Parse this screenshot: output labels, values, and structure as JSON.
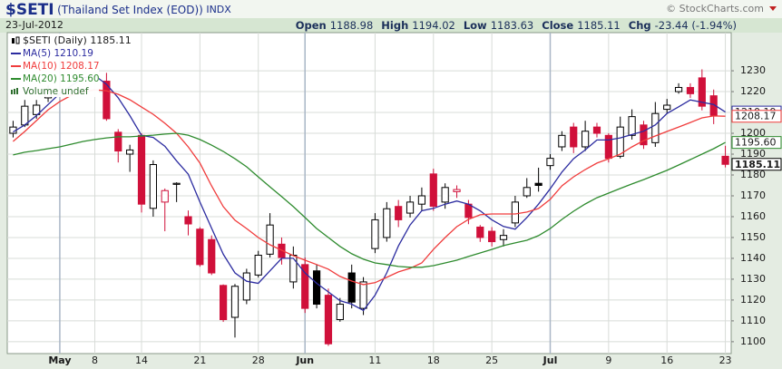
{
  "chart_data": {
    "type": "candlestick",
    "title": "$SETI",
    "subtitle": "(Thailand Set Index (EOD))",
    "exchange": "INDX",
    "source": "© StockCharts.com",
    "date": "23-Jul-2012",
    "quote": [
      {
        "label": "Open",
        "value": 1188.98
      },
      {
        "label": "High",
        "value": 1194.02
      },
      {
        "label": "Low",
        "value": 1183.63
      },
      {
        "label": "Close",
        "value": 1185.11
      },
      {
        "label": "Chg",
        "value_label": "-23.44 (-1.94%)"
      }
    ],
    "legend": {
      "price_label": "$SETI (Daily)",
      "volume_label": "Volume undef"
    },
    "categories": [
      null,
      null,
      null,
      null,
      "May",
      null,
      null,
      "8",
      null,
      null,
      null,
      "14",
      null,
      null,
      null,
      null,
      "21",
      null,
      null,
      null,
      null,
      "28",
      null,
      null,
      null,
      "Jun",
      null,
      null,
      null,
      null,
      null,
      "11",
      null,
      null,
      null,
      null,
      "18",
      null,
      null,
      null,
      null,
      "25",
      null,
      null,
      null,
      null,
      "Jul",
      null,
      null,
      null,
      null,
      "9",
      null,
      null,
      null,
      null,
      "16",
      null,
      null,
      null,
      null,
      "23"
    ],
    "open": [
      1200,
      1204,
      1209,
      1217,
      null,
      null,
      null,
      null,
      1225,
      1200.5,
      1190,
      1199,
      1164,
      1167,
      1175.5,
      1160,
      1154,
      1149,
      1127,
      1111.7,
      1120,
      1132,
      1142,
      1146.8,
      1128.7,
      1137,
      1134,
      1122.3,
      1110.6,
      1133,
      1116,
      1144.7,
      1150,
      1164.9,
      1161.7,
      1166,
      1180.5,
      1167,
      1172,
      1166,
      1155,
      1153,
      1149,
      1157,
      1170,
      1176,
      1184.5,
      1193.5,
      1203,
      1193.5,
      1203,
      1199,
      1189,
      1199,
      1204,
      1195.5,
      1211.5,
      1220,
      1222,
      1226.6,
      1218,
      1188.98
    ],
    "high": [
      1206,
      1216,
      1216,
      1223,
      null,
      null,
      null,
      null,
      1229,
      1202,
      1194.5,
      1200,
      1187,
      1173.5,
      1176.5,
      1163,
      1155,
      1151,
      1127.5,
      1127.7,
      1135,
      1143.6,
      1161.7,
      1150,
      1145.7,
      1140.4,
      1137,
      1125.5,
      1121,
      1137,
      1131,
      1161.7,
      1167,
      1168,
      1170,
      1174,
      1183,
      1176,
      1175,
      1168,
      1156,
      1155,
      1154,
      1170,
      1178.5,
      1183.5,
      1190,
      1201,
      1205,
      1206,
      1205,
      1200,
      1208,
      1211.5,
      1206,
      1215,
      1216.5,
      1224,
      1224,
      1230.7,
      1221,
      1194.02
    ],
    "low": [
      1198,
      1203,
      1207,
      1215,
      null,
      null,
      null,
      null,
      1206,
      1186,
      1181.5,
      1162,
      1160,
      1153,
      1167,
      1151,
      1136,
      1132,
      1109.5,
      1102,
      1118,
      1130.8,
      1140.4,
      1137,
      1125.5,
      1113.8,
      1116,
      1098,
      1109.6,
      1116,
      1112.8,
      1142.5,
      1148,
      1155,
      1159.6,
      1162.8,
      1162.8,
      1163.8,
      1169,
      1156.4,
      1147.9,
      1145.7,
      1145.7,
      1155,
      1169,
      1172,
      1182.5,
      1191.5,
      1190.5,
      1191.5,
      1198,
      1186,
      1188,
      1197,
      1192.5,
      1193.5,
      1209.5,
      1219,
      1217,
      1211,
      1204.4,
      1183.63
    ],
    "close": [
      1203,
      1213,
      1213.5,
      1220,
      null,
      null,
      null,
      null,
      1207,
      1191.5,
      1192,
      1166,
      1185,
      1172.5,
      1176,
      1156.5,
      1137,
      1133,
      1110.6,
      1126.6,
      1133,
      1141.5,
      1156,
      1140.4,
      1141.5,
      1116,
      1118,
      1099,
      1118,
      1119,
      1128.7,
      1158.5,
      1163.8,
      1158.5,
      1167,
      1170,
      1165,
      1174,
      1173,
      1159.6,
      1150,
      1148,
      1151,
      1167,
      1174,
      1175,
      1188,
      1199,
      1193.5,
      1201,
      1200,
      1188,
      1203,
      1208,
      1194.5,
      1209.5,
      1213.5,
      1222,
      1219,
      1213,
      1208.55,
      1185.11
    ],
    "up_color": "#000000",
    "down_color": "#d0103a",
    "series": [
      {
        "name": "MA(5)",
        "color": "#2c2ca0",
        "values": [
          1200.6,
          1204,
          1208.5,
          1213.8,
          1219.1,
          1222.9,
          1226.6,
          1227.7,
          1223.5,
          1217,
          1208.5,
          1199,
          1198,
          1193.8,
          1186.8,
          1180.4,
          1167,
          1154.5,
          1142,
          1133,
          1129,
          1128,
          1134,
          1140,
          1140,
          1133,
          1128,
          1123.9,
          1119.7,
          1118,
          1115,
          1122.3,
          1133,
          1146,
          1156,
          1162.8,
          1164,
          1166,
          1167.5,
          1166,
          1162.8,
          1158.5,
          1155.3,
          1154,
          1159.6,
          1166,
          1173.4,
          1181.4,
          1187.8,
          1192,
          1196.8,
          1196.8,
          1197.8,
          1199.4,
          1201,
          1204,
          1209.5,
          1212.7,
          1216,
          1214.9,
          1213.8,
          1210.19
        ]
      },
      {
        "name": "MA(10)",
        "color": "#f03c3c",
        "values": [
          1196.1,
          1200.9,
          1206.1,
          1211.3,
          1215.2,
          1218.3,
          1220,
          1220.9,
          1220.4,
          1218.7,
          1216.1,
          1212.6,
          1209.1,
          1204.8,
          1200,
          1193.5,
          1185.7,
          1174.8,
          1164.8,
          1158.3,
          1154.3,
          1150,
          1146.5,
          1143.9,
          1141.3,
          1139.1,
          1137,
          1134.8,
          1131.3,
          1129.1,
          1127.4,
          1128.3,
          1130.9,
          1133.5,
          1135.2,
          1137.8,
          1144.3,
          1150,
          1155.2,
          1158.7,
          1160.9,
          1161.3,
          1161.3,
          1161.3,
          1162.2,
          1163.9,
          1168.3,
          1174.8,
          1179.1,
          1182.6,
          1185.7,
          1187.8,
          1190,
          1193.5,
          1196.5,
          1198.7,
          1200.9,
          1203,
          1205.2,
          1207.4,
          1208.3,
          1208.17
        ]
      },
      {
        "name": "MA(20)",
        "color": "#2e8b2e",
        "values": [
          1189.6,
          1190.9,
          1191.7,
          1192.6,
          1193.5,
          1194.8,
          1196.1,
          1197,
          1197.8,
          1198.3,
          1198.3,
          1198.7,
          1199.1,
          1199.6,
          1200,
          1199.1,
          1197,
          1194.3,
          1191.3,
          1187.8,
          1183.9,
          1179.1,
          1174.3,
          1169.6,
          1164.8,
          1159.6,
          1154.3,
          1150,
          1145.7,
          1142.2,
          1139.6,
          1137.8,
          1137,
          1136.1,
          1135.7,
          1135.7,
          1136.5,
          1137.8,
          1139.1,
          1140.9,
          1142.6,
          1144.3,
          1146.1,
          1147.4,
          1148.7,
          1150.9,
          1154.3,
          1158.7,
          1162.6,
          1166.1,
          1169.1,
          1171.3,
          1173.5,
          1175.7,
          1177.8,
          1180,
          1182.2,
          1184.8,
          1187.4,
          1190,
          1192.6,
          1195.6
        ],
        "value_labels": [
          null,
          null,
          null,
          null,
          null,
          null,
          null,
          null,
          null,
          null,
          null,
          null,
          null,
          null,
          null,
          null,
          null,
          null,
          null,
          null,
          null,
          null,
          null,
          null,
          null,
          null,
          null,
          null,
          null,
          null,
          null,
          null,
          null,
          null,
          null,
          null,
          null,
          null,
          null,
          null,
          null,
          null,
          null,
          null,
          null,
          null,
          null,
          null,
          null,
          null,
          null,
          null,
          null,
          null,
          null,
          null,
          null,
          null,
          null,
          null,
          null,
          "1195.60"
        ]
      }
    ],
    "ylim": [
      1094.3,
      1248.3
    ],
    "yticks": [
      1100,
      1110,
      1120,
      1130,
      1140,
      1150,
      1160,
      1170,
      1180,
      1190,
      1200,
      1210,
      1220,
      1230
    ],
    "grid": true
  }
}
